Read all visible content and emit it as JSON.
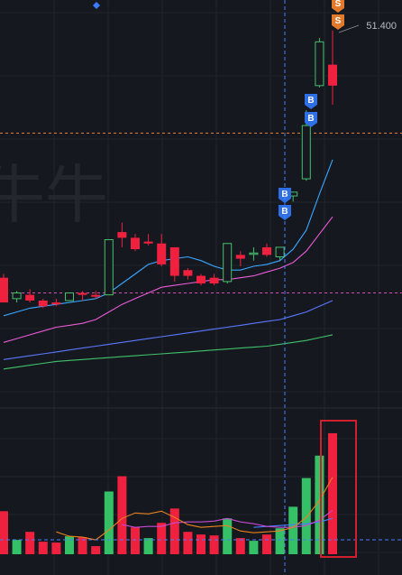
{
  "chart_data": {
    "type": "candlestick",
    "colors": {
      "background": "#16181f",
      "up": "#f0213f",
      "down": "#35c067",
      "hollow_up": "#46c06b",
      "ma5": "#3aa6ff",
      "ma10": "#e85bd6",
      "ma20": "#5a78ff",
      "ma60": "#3fc36a",
      "vol_ma5": "#e8801f",
      "vol_ma10": "#c44bd2",
      "vol_ma20": "#4a7cff",
      "crosshair": "#4a7cff",
      "ref_orange": "#e87a2a",
      "ref_pink": "#d946b5",
      "buy_marker": "#2f6fe6",
      "sell_marker": "#e27a2c",
      "highlight_box": "#d0202e"
    },
    "annotations": {
      "high_price_label": "51.400",
      "buy_markers": [
        "B",
        "B",
        "B",
        "B"
      ],
      "sell_markers": [
        "S",
        "S"
      ],
      "watermark": "牛牛"
    },
    "candles": [
      {
        "o": 38.4,
        "h": 38.6,
        "l": 37.2,
        "c": 37.1,
        "filled": true
      },
      {
        "o": 37.6,
        "h": 37.7,
        "l": 37.1,
        "c": 37.3,
        "filled": false
      },
      {
        "o": 37.5,
        "h": 37.8,
        "l": 37.1,
        "c": 37.2,
        "filled": true
      },
      {
        "o": 37.2,
        "h": 37.3,
        "l": 36.8,
        "c": 36.9,
        "filled": true
      },
      {
        "o": 37.1,
        "h": 37.3,
        "l": 36.9,
        "c": 37.0,
        "filled": true
      },
      {
        "o": 37.2,
        "h": 37.6,
        "l": 37.2,
        "c": 37.6,
        "filled": false
      },
      {
        "o": 37.5,
        "h": 37.7,
        "l": 37.2,
        "c": 37.6,
        "filled": true
      },
      {
        "o": 37.5,
        "h": 37.7,
        "l": 37.3,
        "c": 37.4,
        "filled": true
      },
      {
        "o": 37.5,
        "h": 40.4,
        "l": 37.5,
        "c": 40.4,
        "filled": false
      },
      {
        "o": 40.8,
        "h": 41.3,
        "l": 40.0,
        "c": 40.5,
        "filled": true
      },
      {
        "o": 40.5,
        "h": 40.7,
        "l": 39.8,
        "c": 39.9,
        "filled": true
      },
      {
        "o": 40.3,
        "h": 40.7,
        "l": 40.1,
        "c": 40.2,
        "filled": true
      },
      {
        "o": 40.2,
        "h": 40.7,
        "l": 39.0,
        "c": 39.1,
        "filled": true
      },
      {
        "o": 40.0,
        "h": 40.0,
        "l": 38.2,
        "c": 38.5,
        "filled": true
      },
      {
        "o": 38.8,
        "h": 38.9,
        "l": 38.3,
        "c": 38.5,
        "filled": true
      },
      {
        "o": 38.5,
        "h": 38.6,
        "l": 38.0,
        "c": 38.1,
        "filled": true
      },
      {
        "o": 38.4,
        "h": 38.6,
        "l": 38.0,
        "c": 38.1,
        "filled": true
      },
      {
        "o": 38.2,
        "h": 40.2,
        "l": 38.1,
        "c": 40.2,
        "filled": false
      },
      {
        "o": 39.4,
        "h": 39.8,
        "l": 39.0,
        "c": 39.6,
        "filled": true
      },
      {
        "o": 39.7,
        "h": 40.0,
        "l": 39.3,
        "c": 39.7,
        "filled": false
      },
      {
        "o": 39.6,
        "h": 40.2,
        "l": 39.5,
        "c": 40.0,
        "filled": true
      },
      {
        "o": 39.5,
        "h": 40.0,
        "l": 39.3,
        "c": 40.0,
        "filled": false
      },
      {
        "o": 42.7,
        "h": 42.9,
        "l": 42.4,
        "c": 42.9,
        "filled": false
      },
      {
        "o": 43.6,
        "h": 47.2,
        "l": 43.5,
        "c": 46.4,
        "filled": false
      },
      {
        "o": 48.5,
        "h": 51.0,
        "l": 48.4,
        "c": 50.8,
        "filled": false
      },
      {
        "o": 49.6,
        "h": 51.4,
        "l": 47.5,
        "c": 48.5,
        "filled": true
      }
    ],
    "ma": {
      "ma5": [
        36.4,
        36.6,
        36.8,
        36.9,
        37.0,
        37.1,
        37.2,
        37.3,
        37.6,
        38.1,
        38.6,
        39.1,
        39.3,
        39.4,
        39.5,
        39.3,
        39.0,
        38.8,
        38.8,
        39.0,
        39.1,
        39.3,
        39.9,
        40.9,
        42.8,
        44.6
      ],
      "ma10": [
        35.0,
        35.2,
        35.4,
        35.6,
        35.8,
        35.9,
        36.0,
        36.2,
        36.6,
        37.0,
        37.3,
        37.6,
        37.9,
        38.0,
        38.1,
        38.2,
        38.3,
        38.3,
        38.4,
        38.5,
        38.7,
        38.9,
        39.2,
        39.8,
        40.7,
        41.6
      ],
      "ma20": [
        34.1,
        34.2,
        34.3,
        34.4,
        34.5,
        34.6,
        34.7,
        34.8,
        34.9,
        35.0,
        35.1,
        35.2,
        35.3,
        35.4,
        35.5,
        35.6,
        35.7,
        35.8,
        35.9,
        36.0,
        36.1,
        36.2,
        36.4,
        36.6,
        36.9,
        37.2
      ],
      "ma60": [
        33.6,
        33.7,
        33.8,
        33.9,
        34.0,
        34.05,
        34.1,
        34.15,
        34.2,
        34.25,
        34.3,
        34.35,
        34.4,
        34.45,
        34.5,
        34.55,
        34.6,
        34.65,
        34.7,
        34.75,
        34.8,
        34.9,
        35.0,
        35.1,
        35.25,
        35.4
      ]
    },
    "volume": [
      {
        "v": 48,
        "up": false,
        "filled": true
      },
      {
        "v": 16,
        "up": true,
        "filled": true
      },
      {
        "v": 25,
        "up": false,
        "filled": true
      },
      {
        "v": 14,
        "up": false,
        "filled": true
      },
      {
        "v": 13,
        "up": false,
        "filled": true
      },
      {
        "v": 20,
        "up": true,
        "filled": true
      },
      {
        "v": 19,
        "up": false,
        "filled": true
      },
      {
        "v": 9,
        "up": false,
        "filled": true
      },
      {
        "v": 70,
        "up": true,
        "filled": true
      },
      {
        "v": 87,
        "up": false,
        "filled": true
      },
      {
        "v": 30,
        "up": false,
        "filled": true
      },
      {
        "v": 18,
        "up": true,
        "filled": true
      },
      {
        "v": 35,
        "up": false,
        "filled": true
      },
      {
        "v": 51,
        "up": false,
        "filled": true
      },
      {
        "v": 25,
        "up": false,
        "filled": true
      },
      {
        "v": 22,
        "up": false,
        "filled": true
      },
      {
        "v": 21,
        "up": false,
        "filled": true
      },
      {
        "v": 40,
        "up": true,
        "filled": true
      },
      {
        "v": 18,
        "up": false,
        "filled": true
      },
      {
        "v": 15,
        "up": true,
        "filled": true
      },
      {
        "v": 22,
        "up": false,
        "filled": true
      },
      {
        "v": 29,
        "up": true,
        "filled": true
      },
      {
        "v": 53,
        "up": true,
        "filled": true
      },
      {
        "v": 85,
        "up": true,
        "filled": true
      },
      {
        "v": 110,
        "up": true,
        "filled": true
      },
      {
        "v": 135,
        "up": false,
        "filled": true
      }
    ],
    "vol_ma": {
      "ma5": [
        null,
        null,
        null,
        null,
        25,
        20,
        19,
        16,
        27,
        40,
        46,
        45,
        48,
        41,
        33,
        30,
        31,
        32,
        26,
        24,
        25,
        26,
        30,
        41,
        60,
        86
      ],
      "ma10": [
        null,
        null,
        null,
        null,
        null,
        null,
        null,
        null,
        null,
        33,
        30,
        31,
        31,
        35,
        36,
        36,
        37,
        40,
        36,
        34,
        31,
        30,
        30,
        32,
        38,
        49
      ],
      "ma20": [
        null,
        null,
        null,
        null,
        null,
        null,
        null,
        null,
        null,
        null,
        null,
        null,
        null,
        null,
        null,
        null,
        null,
        null,
        null,
        30,
        31,
        32,
        33,
        34,
        36,
        40
      ]
    },
    "price_range": [
      32.5,
      53.0
    ],
    "volume_range": [
      0,
      145
    ],
    "ref_lines": {
      "orange": 46.0,
      "pink": 37.6
    }
  }
}
